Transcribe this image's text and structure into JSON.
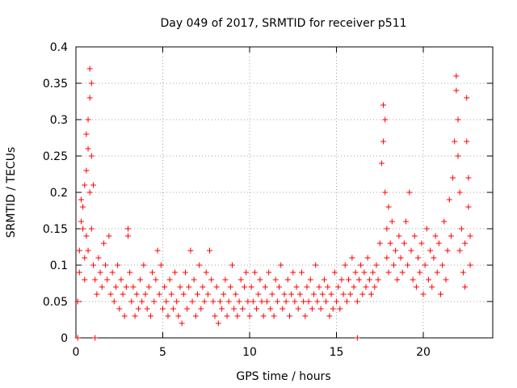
{
  "chart_data": {
    "type": "scatter",
    "title": "Day 049 of 2017, SRMTID for receiver p511",
    "xlabel": "GPS time / hours",
    "ylabel": "SRMTID / TECUs",
    "xlim": [
      0,
      24
    ],
    "ylim": [
      0,
      0.4
    ],
    "x_ticks": [
      0,
      5,
      10,
      15,
      20
    ],
    "y_ticks": [
      0,
      0.05,
      0.1,
      0.15,
      0.2,
      0.25,
      0.3,
      0.35,
      0.4
    ],
    "y_tick_labels": [
      "0",
      "0.05",
      "0.1",
      "0.15",
      "0.2",
      "0.25",
      "0.3",
      "0.35",
      "0.4"
    ],
    "grid": true,
    "marker": "+",
    "series_color": "#ff0000",
    "series": [
      {
        "name": "SRMTID",
        "points": [
          [
            0.1,
            0.0
          ],
          [
            1.1,
            0.0
          ],
          [
            16.2,
            0.0
          ],
          [
            0.1,
            0.05
          ],
          [
            0.2,
            0.09
          ],
          [
            0.2,
            0.12
          ],
          [
            0.3,
            0.16
          ],
          [
            0.3,
            0.19
          ],
          [
            0.4,
            0.15
          ],
          [
            0.4,
            0.18
          ],
          [
            0.5,
            0.11
          ],
          [
            0.5,
            0.21
          ],
          [
            0.5,
            0.08
          ],
          [
            0.6,
            0.23
          ],
          [
            0.6,
            0.28
          ],
          [
            0.6,
            0.14
          ],
          [
            0.7,
            0.26
          ],
          [
            0.7,
            0.3
          ],
          [
            0.7,
            0.12
          ],
          [
            0.8,
            0.33
          ],
          [
            0.8,
            0.37
          ],
          [
            0.8,
            0.2
          ],
          [
            0.9,
            0.35
          ],
          [
            0.9,
            0.25
          ],
          [
            0.9,
            0.15
          ],
          [
            1.0,
            0.21
          ],
          [
            1.0,
            0.1
          ],
          [
            1.1,
            0.08
          ],
          [
            1.2,
            0.06
          ],
          [
            1.3,
            0.11
          ],
          [
            1.4,
            0.09
          ],
          [
            1.5,
            0.07
          ],
          [
            1.6,
            0.13
          ],
          [
            1.7,
            0.1
          ],
          [
            1.8,
            0.08
          ],
          [
            1.9,
            0.14
          ],
          [
            2.0,
            0.06
          ],
          [
            2.1,
            0.09
          ],
          [
            2.2,
            0.05
          ],
          [
            2.3,
            0.07
          ],
          [
            2.4,
            0.1
          ],
          [
            2.5,
            0.04
          ],
          [
            2.6,
            0.08
          ],
          [
            2.7,
            0.06
          ],
          [
            2.8,
            0.03
          ],
          [
            2.9,
            0.07
          ],
          [
            3.0,
            0.15
          ],
          [
            3.0,
            0.14
          ],
          [
            3.1,
            0.09
          ],
          [
            3.2,
            0.05
          ],
          [
            3.3,
            0.07
          ],
          [
            3.4,
            0.03
          ],
          [
            3.5,
            0.06
          ],
          [
            3.6,
            0.04
          ],
          [
            3.7,
            0.08
          ],
          [
            3.8,
            0.05
          ],
          [
            3.9,
            0.1
          ],
          [
            4.0,
            0.06
          ],
          [
            4.1,
            0.04
          ],
          [
            4.2,
            0.07
          ],
          [
            4.3,
            0.03
          ],
          [
            4.4,
            0.09
          ],
          [
            4.5,
            0.05
          ],
          [
            4.6,
            0.08
          ],
          [
            4.7,
            0.12
          ],
          [
            4.8,
            0.06
          ],
          [
            4.9,
            0.1
          ],
          [
            5.0,
            0.04
          ],
          [
            5.1,
            0.07
          ],
          [
            5.2,
            0.05
          ],
          [
            5.3,
            0.03
          ],
          [
            5.4,
            0.08
          ],
          [
            5.5,
            0.06
          ],
          [
            5.6,
            0.04
          ],
          [
            5.7,
            0.09
          ],
          [
            5.8,
            0.05
          ],
          [
            5.9,
            0.03
          ],
          [
            6.0,
            0.07
          ],
          [
            6.1,
            0.02
          ],
          [
            6.2,
            0.06
          ],
          [
            6.3,
            0.09
          ],
          [
            6.4,
            0.04
          ],
          [
            6.5,
            0.07
          ],
          [
            6.6,
            0.12
          ],
          [
            6.7,
            0.05
          ],
          [
            6.8,
            0.08
          ],
          [
            6.9,
            0.03
          ],
          [
            7.0,
            0.06
          ],
          [
            7.1,
            0.1
          ],
          [
            7.2,
            0.04
          ],
          [
            7.3,
            0.07
          ],
          [
            7.4,
            0.05
          ],
          [
            7.5,
            0.09
          ],
          [
            7.6,
            0.06
          ],
          [
            7.7,
            0.12
          ],
          [
            7.8,
            0.08
          ],
          [
            7.9,
            0.05
          ],
          [
            8.0,
            0.03
          ],
          [
            8.1,
            0.07
          ],
          [
            8.2,
            0.02
          ],
          [
            8.3,
            0.05
          ],
          [
            8.4,
            0.04
          ],
          [
            8.5,
            0.06
          ],
          [
            8.6,
            0.08
          ],
          [
            8.7,
            0.03
          ],
          [
            8.8,
            0.05
          ],
          [
            8.9,
            0.07
          ],
          [
            9.0,
            0.1
          ],
          [
            9.1,
            0.04
          ],
          [
            9.2,
            0.06
          ],
          [
            9.3,
            0.03
          ],
          [
            9.4,
            0.05
          ],
          [
            9.5,
            0.08
          ],
          [
            9.6,
            0.04
          ],
          [
            9.7,
            0.07
          ],
          [
            9.8,
            0.09
          ],
          [
            9.9,
            0.05
          ],
          [
            10.0,
            0.03
          ],
          [
            10.1,
            0.07
          ],
          [
            10.2,
            0.05
          ],
          [
            10.3,
            0.09
          ],
          [
            10.4,
            0.04
          ],
          [
            10.5,
            0.06
          ],
          [
            10.6,
            0.08
          ],
          [
            10.7,
            0.05
          ],
          [
            10.8,
            0.03
          ],
          [
            10.9,
            0.07
          ],
          [
            11.0,
            0.05
          ],
          [
            11.1,
            0.09
          ],
          [
            11.2,
            0.04
          ],
          [
            11.3,
            0.06
          ],
          [
            11.4,
            0.03
          ],
          [
            11.5,
            0.08
          ],
          [
            11.6,
            0.05
          ],
          [
            11.7,
            0.07
          ],
          [
            11.8,
            0.1
          ],
          [
            11.9,
            0.04
          ],
          [
            12.0,
            0.06
          ],
          [
            12.1,
            0.05
          ],
          [
            12.2,
            0.08
          ],
          [
            12.3,
            0.03
          ],
          [
            12.4,
            0.06
          ],
          [
            12.5,
            0.09
          ],
          [
            12.6,
            0.05
          ],
          [
            12.7,
            0.07
          ],
          [
            12.8,
            0.04
          ],
          [
            12.9,
            0.06
          ],
          [
            13.0,
            0.09
          ],
          [
            13.1,
            0.05
          ],
          [
            13.2,
            0.03
          ],
          [
            13.3,
            0.07
          ],
          [
            13.4,
            0.05
          ],
          [
            13.5,
            0.08
          ],
          [
            13.6,
            0.04
          ],
          [
            13.7,
            0.06
          ],
          [
            13.8,
            0.1
          ],
          [
            13.9,
            0.05
          ],
          [
            14.0,
            0.07
          ],
          [
            14.1,
            0.04
          ],
          [
            14.2,
            0.06
          ],
          [
            14.3,
            0.08
          ],
          [
            14.4,
            0.05
          ],
          [
            14.5,
            0.07
          ],
          [
            14.6,
            0.03
          ],
          [
            14.7,
            0.06
          ],
          [
            14.8,
            0.04
          ],
          [
            14.9,
            0.09
          ],
          [
            15.0,
            0.05
          ],
          [
            15.1,
            0.07
          ],
          [
            15.2,
            0.04
          ],
          [
            15.3,
            0.08
          ],
          [
            15.4,
            0.06
          ],
          [
            15.5,
            0.1
          ],
          [
            15.6,
            0.05
          ],
          [
            15.7,
            0.08
          ],
          [
            15.8,
            0.06
          ],
          [
            15.9,
            0.11
          ],
          [
            16.0,
            0.07
          ],
          [
            16.1,
            0.09
          ],
          [
            16.2,
            0.05
          ],
          [
            16.3,
            0.08
          ],
          [
            16.4,
            0.1
          ],
          [
            16.5,
            0.06
          ],
          [
            16.6,
            0.09
          ],
          [
            16.7,
            0.07
          ],
          [
            16.8,
            0.11
          ],
          [
            16.9,
            0.08
          ],
          [
            17.0,
            0.06
          ],
          [
            17.1,
            0.09
          ],
          [
            17.2,
            0.07
          ],
          [
            17.3,
            0.1
          ],
          [
            17.4,
            0.08
          ],
          [
            17.5,
            0.13
          ],
          [
            17.6,
            0.24
          ],
          [
            17.7,
            0.27
          ],
          [
            17.7,
            0.32
          ],
          [
            17.8,
            0.3
          ],
          [
            17.8,
            0.2
          ],
          [
            17.9,
            0.15
          ],
          [
            17.9,
            0.11
          ],
          [
            18.0,
            0.18
          ],
          [
            18.0,
            0.09
          ],
          [
            18.1,
            0.13
          ],
          [
            18.2,
            0.16
          ],
          [
            18.3,
            0.1
          ],
          [
            18.4,
            0.12
          ],
          [
            18.5,
            0.08
          ],
          [
            18.6,
            0.14
          ],
          [
            18.7,
            0.11
          ],
          [
            18.8,
            0.09
          ],
          [
            18.9,
            0.13
          ],
          [
            19.0,
            0.16
          ],
          [
            19.1,
            0.1
          ],
          [
            19.2,
            0.2
          ],
          [
            19.3,
            0.12
          ],
          [
            19.4,
            0.08
          ],
          [
            19.5,
            0.14
          ],
          [
            19.6,
            0.07
          ],
          [
            19.7,
            0.11
          ],
          [
            19.8,
            0.09
          ],
          [
            19.9,
            0.13
          ],
          [
            20.0,
            0.06
          ],
          [
            20.1,
            0.1
          ],
          [
            20.2,
            0.15
          ],
          [
            20.3,
            0.08
          ],
          [
            20.4,
            0.12
          ],
          [
            20.5,
            0.07
          ],
          [
            20.6,
            0.11
          ],
          [
            20.7,
            0.14
          ],
          [
            20.8,
            0.09
          ],
          [
            20.9,
            0.13
          ],
          [
            21.0,
            0.06
          ],
          [
            21.1,
            0.1
          ],
          [
            21.2,
            0.16
          ],
          [
            21.3,
            0.08
          ],
          [
            21.4,
            0.12
          ],
          [
            21.5,
            0.19
          ],
          [
            21.6,
            0.14
          ],
          [
            21.7,
            0.22
          ],
          [
            21.8,
            0.27
          ],
          [
            21.9,
            0.34
          ],
          [
            21.9,
            0.36
          ],
          [
            22.0,
            0.3
          ],
          [
            22.0,
            0.25
          ],
          [
            22.1,
            0.2
          ],
          [
            22.1,
            0.12
          ],
          [
            22.2,
            0.15
          ],
          [
            22.3,
            0.09
          ],
          [
            22.4,
            0.13
          ],
          [
            22.4,
            0.07
          ],
          [
            22.5,
            0.33
          ],
          [
            22.5,
            0.27
          ],
          [
            22.6,
            0.22
          ],
          [
            22.6,
            0.18
          ],
          [
            22.7,
            0.14
          ],
          [
            22.7,
            0.1
          ]
        ]
      }
    ]
  }
}
